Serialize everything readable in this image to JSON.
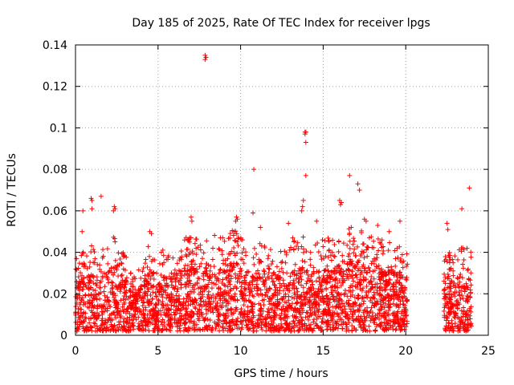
{
  "chart_data": {
    "type": "scatter",
    "title": "Day 185 of 2025, Rate Of TEC Index for receiver lpgs",
    "xlabel": "GPS time / hours",
    "ylabel": "ROTI / TECUs",
    "xlim": [
      0,
      25
    ],
    "ylim": [
      0,
      0.14
    ],
    "x_ticks": [
      "0",
      "5",
      "10",
      "15",
      "20",
      "25"
    ],
    "y_ticks": [
      "0",
      "0.02",
      "0.04",
      "0.06",
      "0.08",
      "0.1",
      "0.12",
      "0.14"
    ],
    "x_tick_values": [
      0,
      5,
      10,
      15,
      20,
      25
    ],
    "y_tick_values": [
      0,
      0.02,
      0.04,
      0.06,
      0.08,
      0.1,
      0.12,
      0.14
    ],
    "grid": true,
    "marker": "+",
    "marker_color": "#ff0000",
    "data_gap_hours": [
      20.1,
      22.3
    ],
    "coverage_segments": [
      [
        0,
        20.1
      ],
      [
        22.3,
        24.0
      ]
    ],
    "series": [
      {
        "name": "lpgs",
        "outliers": [
          [
            7.85,
            0.135
          ],
          [
            7.85,
            0.133
          ],
          [
            7.9,
            0.134
          ],
          [
            13.9,
            0.098
          ],
          [
            13.95,
            0.098
          ],
          [
            13.9,
            0.097
          ],
          [
            13.95,
            0.093
          ],
          [
            13.95,
            0.077
          ],
          [
            10.8,
            0.08
          ],
          [
            16.6,
            0.077
          ],
          [
            23.85,
            0.071
          ],
          [
            17.1,
            0.073
          ],
          [
            17.2,
            0.07
          ],
          [
            0.95,
            0.066
          ],
          [
            1.0,
            0.065
          ],
          [
            1.55,
            0.067
          ],
          [
            2.35,
            0.062
          ],
          [
            2.4,
            0.061
          ],
          [
            2.3,
            0.06
          ],
          [
            16.0,
            0.065
          ],
          [
            16.1,
            0.064
          ],
          [
            16.05,
            0.063
          ],
          [
            13.75,
            0.062
          ],
          [
            13.8,
            0.065
          ],
          [
            13.7,
            0.06
          ],
          [
            9.75,
            0.057
          ],
          [
            9.8,
            0.056
          ],
          [
            9.7,
            0.055
          ],
          [
            7.0,
            0.057
          ],
          [
            7.05,
            0.055
          ],
          [
            10.75,
            0.059
          ],
          [
            0.45,
            0.06
          ],
          [
            1.0,
            0.061
          ],
          [
            23.4,
            0.061
          ],
          [
            22.5,
            0.054
          ],
          [
            22.55,
            0.051
          ],
          [
            19.65,
            0.055
          ],
          [
            14.6,
            0.055
          ],
          [
            12.9,
            0.054
          ],
          [
            17.5,
            0.056
          ],
          [
            17.6,
            0.055
          ],
          [
            11.2,
            0.052
          ],
          [
            18.3,
            0.053
          ],
          [
            4.5,
            0.05
          ],
          [
            4.6,
            0.049
          ],
          [
            0.4,
            0.05
          ],
          [
            16.7,
            0.052
          ],
          [
            9.6,
            0.05
          ],
          [
            19.0,
            0.05
          ]
        ],
        "density_envelope": [
          [
            0.0,
            0.024
          ],
          [
            0.5,
            0.026
          ],
          [
            1.0,
            0.028
          ],
          [
            1.5,
            0.026
          ],
          [
            2.0,
            0.03
          ],
          [
            2.5,
            0.032
          ],
          [
            3.0,
            0.026
          ],
          [
            3.5,
            0.018
          ],
          [
            4.0,
            0.022
          ],
          [
            4.5,
            0.03
          ],
          [
            5.0,
            0.028
          ],
          [
            5.5,
            0.026
          ],
          [
            6.0,
            0.028
          ],
          [
            6.5,
            0.03
          ],
          [
            7.0,
            0.032
          ],
          [
            7.5,
            0.03
          ],
          [
            8.0,
            0.034
          ],
          [
            8.5,
            0.032
          ],
          [
            9.0,
            0.03
          ],
          [
            9.5,
            0.034
          ],
          [
            10.0,
            0.032
          ],
          [
            10.5,
            0.026
          ],
          [
            11.0,
            0.028
          ],
          [
            11.5,
            0.03
          ],
          [
            12.0,
            0.028
          ],
          [
            12.5,
            0.026
          ],
          [
            13.0,
            0.03
          ],
          [
            13.5,
            0.032
          ],
          [
            14.0,
            0.03
          ],
          [
            14.5,
            0.028
          ],
          [
            15.0,
            0.032
          ],
          [
            15.5,
            0.03
          ],
          [
            16.0,
            0.032
          ],
          [
            16.5,
            0.034
          ],
          [
            17.0,
            0.034
          ],
          [
            17.5,
            0.032
          ],
          [
            18.0,
            0.032
          ],
          [
            18.5,
            0.03
          ],
          [
            19.0,
            0.03
          ],
          [
            19.5,
            0.028
          ],
          [
            20.0,
            0.026
          ],
          [
            22.3,
            0.024
          ],
          [
            22.5,
            0.026
          ],
          [
            23.0,
            0.026
          ],
          [
            23.5,
            0.028
          ],
          [
            24.0,
            0.026
          ]
        ],
        "baseline_min": 0.002
      }
    ]
  }
}
